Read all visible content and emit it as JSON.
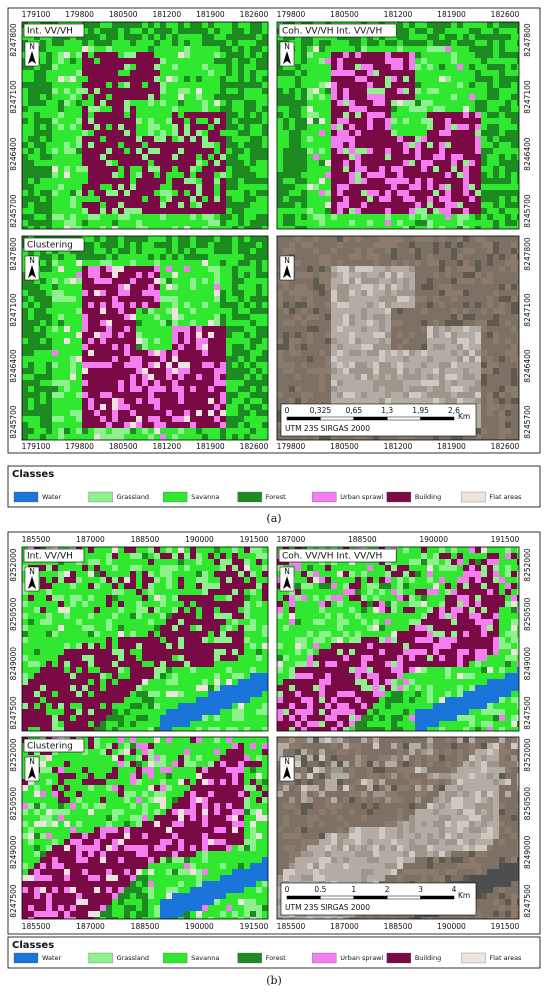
{
  "north": "N",
  "legend": {
    "title": "Classes",
    "items": [
      {
        "name": "Water",
        "color": "#1a74d9"
      },
      {
        "name": "Grassland",
        "color": "#8df28d"
      },
      {
        "name": "Savanna",
        "color": "#2fe82f"
      },
      {
        "name": "Forest",
        "color": "#1e8a22"
      },
      {
        "name": "Urban sprawl",
        "color": "#f27ef0"
      },
      {
        "name": "Building",
        "color": "#7a0a46"
      },
      {
        "name": "Flat areas",
        "color": "#efe3de"
      }
    ]
  },
  "figures": [
    {
      "caption": "(a)",
      "panels": [
        {
          "label": "Int. VV/VH"
        },
        {
          "label": "Coh. VV/VH Int. VV/VH"
        },
        {
          "label": "Clustering"
        },
        {
          "scale_bar": {
            "ticks": [
              "0",
              "0,325",
              "0,65",
              "1,3",
              "1,95",
              "2,6"
            ],
            "unit": "Km",
            "projection": "UTM 23S SIRGAS 2000"
          }
        }
      ],
      "x_ticks": {
        "top_left": [
          "179100",
          "179800",
          "180500",
          "181200",
          "181900",
          "182600"
        ],
        "top_right": [
          "179800",
          "180500",
          "181200",
          "181900",
          "182600"
        ],
        "bottom_left": [
          "179100",
          "179800",
          "180500",
          "181200",
          "181900",
          "182600"
        ],
        "bottom_right": [
          "179800",
          "180500",
          "181200",
          "181900",
          "182600"
        ]
      },
      "y_ticks": [
        "8247800",
        "8247100",
        "8246400",
        "8245700"
      ]
    },
    {
      "caption": "(b)",
      "panels": [
        {
          "label": "Int. VV/VH"
        },
        {
          "label": "Coh. VV/VH Int. VV/VH"
        },
        {
          "label": "Clustering"
        },
        {
          "scale_bar": {
            "ticks": [
              "0",
              "0.5",
              "1",
              "2",
              "3",
              "4"
            ],
            "unit": "Km",
            "projection": "UTM 23S SIRGAS 2000"
          }
        }
      ],
      "x_ticks": {
        "top_left": [
          "185500",
          "187000",
          "188500",
          "190000",
          "191500"
        ],
        "top_right": [
          "187000",
          "188500",
          "190000",
          "191500"
        ],
        "bottom_left": [
          "185500",
          "187000",
          "188500",
          "190000",
          "191500"
        ],
        "bottom_right": [
          "185500",
          "187000",
          "188500",
          "190000",
          "191500"
        ]
      },
      "y_ticks": [
        "8252000",
        "8250500",
        "8249000",
        "8247500"
      ]
    }
  ]
}
